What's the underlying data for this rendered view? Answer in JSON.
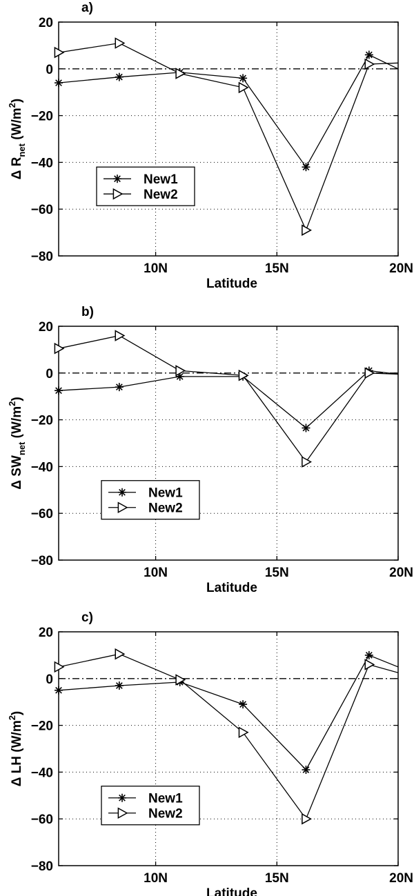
{
  "chart_data": [
    {
      "type": "line",
      "panel_label": "a)",
      "ylabel_main": "Δ R",
      "ylabel_sub": "net",
      "ylabel_unit": " (W/m",
      "ylabel_pow": "2",
      "ylabel_close": ")",
      "xlabel": "Latitude",
      "x_ticks": [
        {
          "value": 10,
          "label": "10N"
        },
        {
          "value": 15,
          "label": "15N"
        },
        {
          "value": 20,
          "label": "20N"
        }
      ],
      "y_ticks": [
        20,
        0,
        -20,
        -40,
        -60,
        -80
      ],
      "xlim": [
        6,
        20
      ],
      "ylim": [
        -80,
        20
      ],
      "zero_line": true,
      "grid": true,
      "legend_position": "left-middle",
      "series": [
        {
          "name": "New1",
          "marker": "asterisk",
          "points": [
            [
              6,
              -6
            ],
            [
              8.5,
              -3.5
            ],
            [
              11,
              -1.5
            ],
            [
              13.6,
              -4
            ],
            [
              16.2,
              -42
            ],
            [
              18.8,
              6
            ],
            [
              20,
              0
            ]
          ]
        },
        {
          "name": "New2",
          "marker": "triangle-right",
          "points": [
            [
              6,
              7
            ],
            [
              8.5,
              11
            ],
            [
              11,
              -2
            ],
            [
              13.6,
              -8
            ],
            [
              16.2,
              -69
            ],
            [
              18.8,
              2
            ],
            [
              20,
              2.5
            ]
          ]
        }
      ]
    },
    {
      "type": "line",
      "panel_label": "b)",
      "ylabel_main": "Δ SW",
      "ylabel_sub": "net",
      "ylabel_unit": " (W/m",
      "ylabel_pow": "2",
      "ylabel_close": ")",
      "xlabel": "Latitude",
      "x_ticks": [
        {
          "value": 10,
          "label": "10N"
        },
        {
          "value": 15,
          "label": "15N"
        },
        {
          "value": 20,
          "label": "20N"
        }
      ],
      "y_ticks": [
        20,
        0,
        -20,
        -40,
        -60,
        -80
      ],
      "xlim": [
        6,
        20
      ],
      "ylim": [
        -80,
        20
      ],
      "zero_line": true,
      "grid": true,
      "legend_position": "left-lower",
      "series": [
        {
          "name": "New1",
          "marker": "asterisk",
          "points": [
            [
              6,
              -7.5
            ],
            [
              8.5,
              -6
            ],
            [
              11,
              -1.5
            ],
            [
              13.6,
              -1.5
            ],
            [
              16.2,
              -23.5
            ],
            [
              18.8,
              1
            ],
            [
              20,
              -0.5
            ]
          ]
        },
        {
          "name": "New2",
          "marker": "triangle-right",
          "points": [
            [
              6,
              10.5
            ],
            [
              8.5,
              16
            ],
            [
              11,
              1
            ],
            [
              13.6,
              -1
            ],
            [
              16.2,
              -38
            ],
            [
              18.8,
              0
            ],
            [
              20,
              -0.5
            ]
          ]
        }
      ]
    },
    {
      "type": "line",
      "panel_label": "c)",
      "ylabel_main": "Δ LH",
      "ylabel_sub": "",
      "ylabel_unit": " (W/m",
      "ylabel_pow": "2",
      "ylabel_close": ")",
      "xlabel": "Latitude",
      "x_ticks": [
        {
          "value": 10,
          "label": "10N"
        },
        {
          "value": 15,
          "label": "15N"
        },
        {
          "value": 20,
          "label": "20N"
        }
      ],
      "y_ticks": [
        20,
        0,
        -20,
        -40,
        -60,
        -80
      ],
      "xlim": [
        6,
        20
      ],
      "ylim": [
        -80,
        20
      ],
      "zero_line": true,
      "grid": true,
      "legend_position": "left-lower",
      "series": [
        {
          "name": "New1",
          "marker": "asterisk",
          "points": [
            [
              6,
              -5
            ],
            [
              8.5,
              -3
            ],
            [
              11,
              -1.5
            ],
            [
              13.6,
              -11
            ],
            [
              16.2,
              -39
            ],
            [
              18.8,
              10
            ],
            [
              20,
              5
            ]
          ]
        },
        {
          "name": "New2",
          "marker": "triangle-right",
          "points": [
            [
              6,
              5
            ],
            [
              8.5,
              10.5
            ],
            [
              11,
              -0.5
            ],
            [
              13.6,
              -23
            ],
            [
              16.2,
              -60
            ],
            [
              18.8,
              6
            ],
            [
              20,
              2.5
            ]
          ]
        }
      ]
    }
  ]
}
